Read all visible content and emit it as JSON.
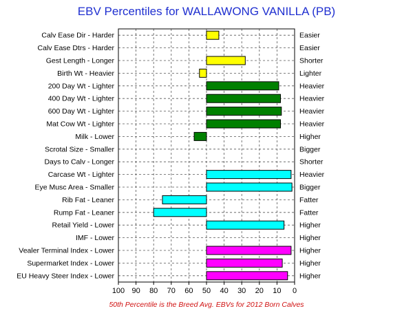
{
  "chart_data": {
    "type": "bar",
    "title": "EBV Percentiles for WALLAWONG VANILLA (PB)",
    "footnote": "50th Percentile is the Breed Avg. EBVs for 2012 Born Calves",
    "x_axis": {
      "ticks": [
        "100",
        "90",
        "80",
        "70",
        "60",
        "50",
        "40",
        "30",
        "20",
        "10",
        "0"
      ],
      "range": [
        100,
        0
      ],
      "baseline": 50,
      "grid": true
    },
    "rows": [
      {
        "left": "Calv Ease Dir - Harder",
        "right": "Easier",
        "value": 43,
        "color": "#ffff00"
      },
      {
        "left": "Calv Ease Dtrs - Harder",
        "right": "Easier",
        "value": null,
        "color": "#ffff00"
      },
      {
        "left": "Gest Length - Longer",
        "right": "Shorter",
        "value": 28,
        "color": "#ffff00"
      },
      {
        "left": "Birth Wt - Heavier",
        "right": "Lighter",
        "value": 54,
        "color": "#ffff00"
      },
      {
        "left": "200 Day Wt - Lighter",
        "right": "Heavier",
        "value": 9,
        "color": "#008000"
      },
      {
        "left": "400 Day Wt - Lighter",
        "right": "Heavier",
        "value": 8,
        "color": "#008000"
      },
      {
        "left": "600 Day Wt - Lighter",
        "right": "Heavier",
        "value": 7.5,
        "color": "#008000"
      },
      {
        "left": "Mat Cow Wt - Lighter",
        "right": "Heavier",
        "value": 8,
        "color": "#008000"
      },
      {
        "left": "Milk - Lower",
        "right": "Higher",
        "value": 57,
        "color": "#008000"
      },
      {
        "left": "Scrotal Size - Smaller",
        "right": "Bigger",
        "value": null,
        "color": "#008000"
      },
      {
        "left": "Days to Calv - Longer",
        "right": "Shorter",
        "value": null,
        "color": "#008000"
      },
      {
        "left": "Carcase Wt - Lighter",
        "right": "Heavier",
        "value": 2,
        "color": "#00ffff"
      },
      {
        "left": "Eye Musc Area - Smaller",
        "right": "Bigger",
        "value": 1.5,
        "color": "#00ffff"
      },
      {
        "left": "Rib Fat - Leaner",
        "right": "Fatter",
        "value": 75,
        "color": "#00ffff"
      },
      {
        "left": "Rump Fat - Leaner",
        "right": "Fatter",
        "value": 80,
        "color": "#00ffff"
      },
      {
        "left": "Retail Yield - Lower",
        "right": "Higher",
        "value": 6,
        "color": "#00ffff"
      },
      {
        "left": "IMF - Lower",
        "right": "Higher",
        "value": null,
        "color": "#00ffff"
      },
      {
        "left": "Vealer Terminal Index - Lower",
        "right": "Higher",
        "value": 2,
        "color": "#ff00ff"
      },
      {
        "left": "Supermarket Index - Lower",
        "right": "Higher",
        "value": 7,
        "color": "#ff00ff"
      },
      {
        "left": "EU Heavy Steer Index - Lower",
        "right": "Higher",
        "value": 4,
        "color": "#ff00ff"
      }
    ]
  }
}
